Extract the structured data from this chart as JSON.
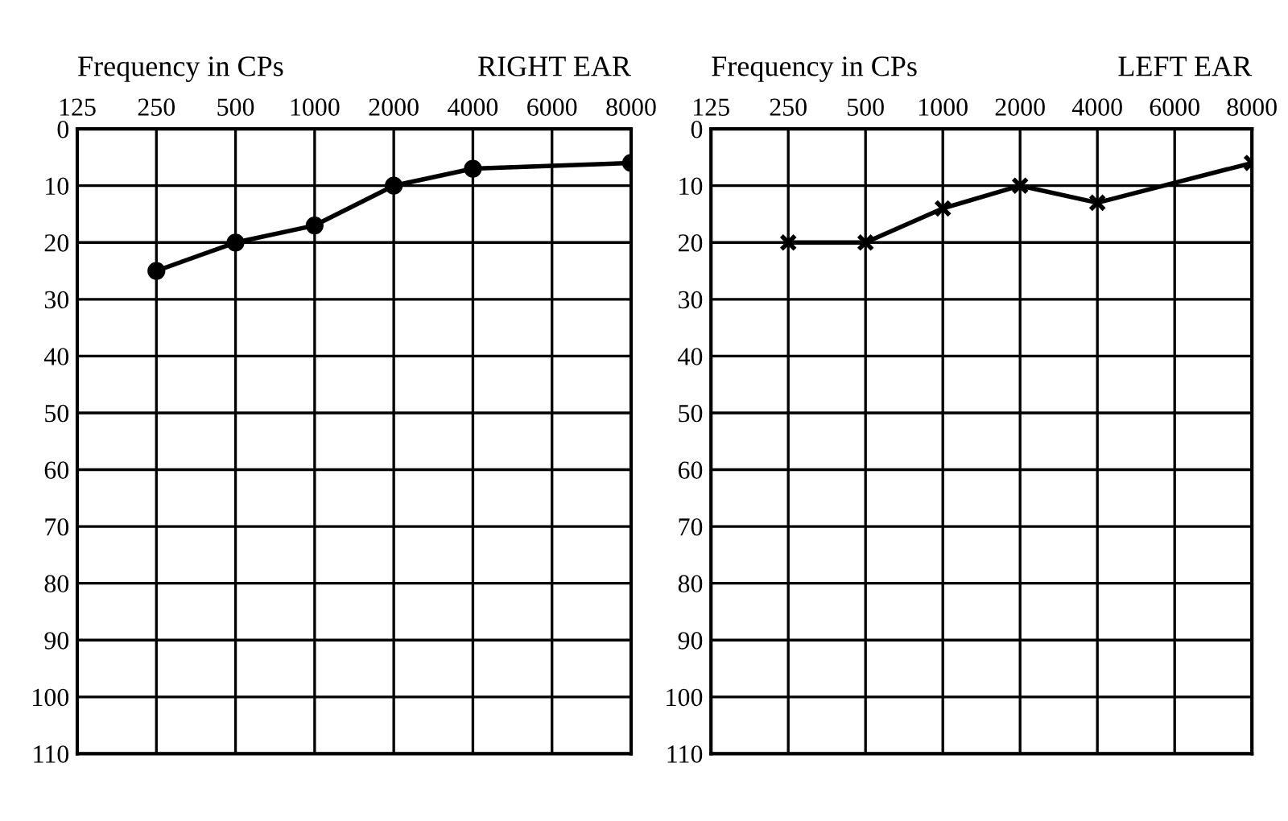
{
  "chart_data": [
    {
      "type": "line",
      "title": "RIGHT EAR",
      "xlabel": "Frequency in CPs",
      "categories": [
        "125",
        "250",
        "500",
        "1000",
        "2000",
        "4000",
        "6000",
        "8000"
      ],
      "series": [
        {
          "color": "#000000",
          "values": [
            null,
            25,
            20,
            17,
            10,
            7,
            null,
            6
          ]
        }
      ],
      "ylim": [
        110,
        0
      ],
      "yticks": [
        0,
        10,
        20,
        30,
        40,
        50,
        60,
        70,
        80,
        90,
        100,
        110
      ],
      "grid": true,
      "marker": "circle",
      "line_style": "solid"
    },
    {
      "type": "line",
      "title": "LEFT EAR",
      "xlabel": "Frequency in CPs",
      "categories": [
        "125",
        "250",
        "500",
        "1000",
        "2000",
        "4000",
        "6000",
        "8000"
      ],
      "series": [
        {
          "color": "#000000",
          "values": [
            null,
            20,
            20,
            14,
            10,
            13,
            null,
            6
          ]
        }
      ],
      "ylim": [
        110,
        0
      ],
      "yticks": [
        0,
        10,
        20,
        30,
        40,
        50,
        60,
        70,
        80,
        90,
        100,
        110
      ],
      "grid": true,
      "marker": "cross",
      "line_style": "solid"
    }
  ]
}
